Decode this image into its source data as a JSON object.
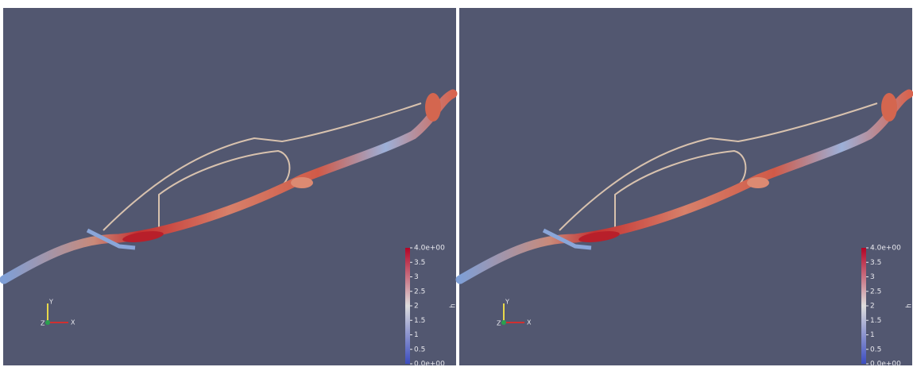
{
  "views": [
    {
      "colorbar": {
        "title": "h",
        "range": [
          0,
          4
        ],
        "ticks": [
          {
            "value": 4,
            "label": "4.0e+00"
          },
          3.5,
          3,
          2.5,
          2,
          1.5,
          1,
          0.5,
          {
            "value": 0,
            "label": "0.0e+00"
          }
        ]
      },
      "axes": {
        "y": "Y",
        "z": "Z",
        "x": "X"
      }
    },
    {
      "colorbar": {
        "title": "h",
        "range": [
          0,
          4
        ],
        "ticks": [
          {
            "value": 4,
            "label": "4.0e+00"
          },
          3.5,
          3,
          2.5,
          2,
          1.5,
          1,
          0.5,
          {
            "value": 0,
            "label": "0.0e+00"
          }
        ]
      },
      "axes": {
        "y": "Y",
        "z": "Z",
        "x": "X"
      }
    }
  ]
}
